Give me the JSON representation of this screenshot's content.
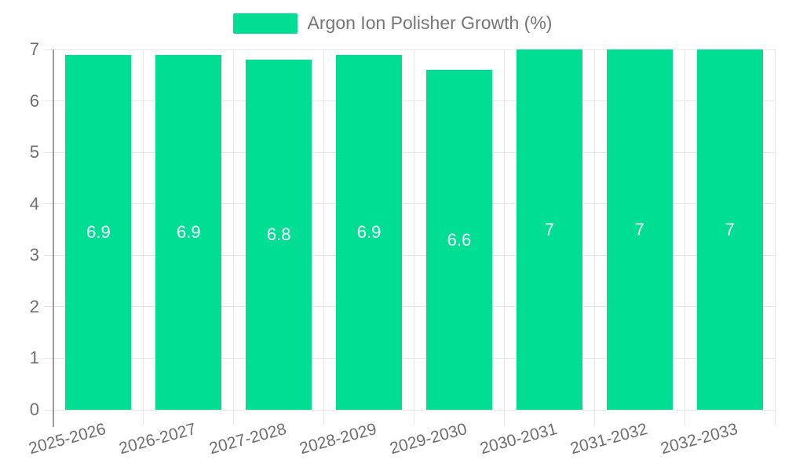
{
  "legend": {
    "series_label": "Argon Ion Polisher Growth (%)"
  },
  "chart_data": {
    "type": "bar",
    "title": "",
    "categories": [
      "2025-2026",
      "2026-2027",
      "2027-2028",
      "2028-2029",
      "2029-2030",
      "2030-2031",
      "2031-2032",
      "2032-2033"
    ],
    "values": [
      6.9,
      6.9,
      6.8,
      6.9,
      6.6,
      7,
      7,
      7
    ],
    "value_labels": [
      "6.9",
      "6.9",
      "6.8",
      "6.9",
      "6.6",
      "7",
      "7",
      "7"
    ],
    "series": [
      {
        "name": "Argon Ion Polisher Growth (%)",
        "values": [
          6.9,
          6.9,
          6.8,
          6.9,
          6.6,
          7,
          7,
          7
        ]
      }
    ],
    "xlabel": "",
    "ylabel": "",
    "ylim": [
      0,
      7
    ],
    "yticks": [
      0,
      1,
      2,
      3,
      4,
      5,
      6,
      7
    ],
    "grid": true,
    "legend_position": "top",
    "bar_color": "#00DE94",
    "value_label_color": "#ffffff",
    "tick_label_color": "#6E6E6E",
    "gridline_color": "#E7E7E7",
    "axis_line_color": "#9B9B9B",
    "background": "#FFFFFF"
  }
}
